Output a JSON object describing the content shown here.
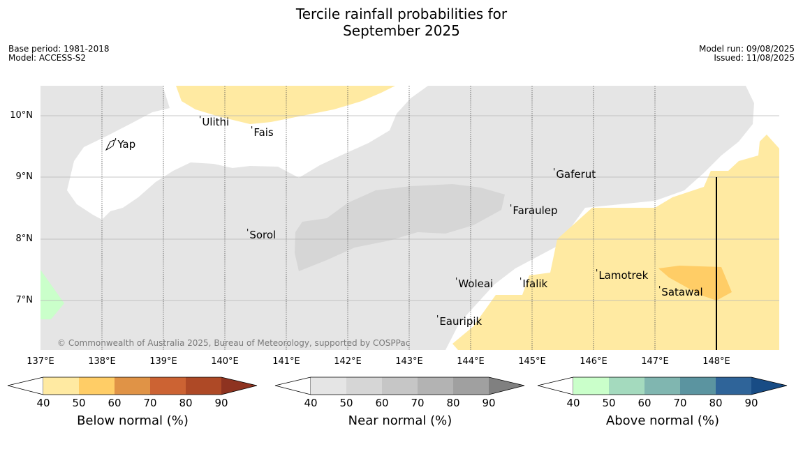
{
  "title": {
    "line1": "Tercile rainfall probabilities for",
    "line2": "September 2025"
  },
  "meta": {
    "base_period": "Base period: 1981-2018",
    "model": "Model: ACCESS-S2",
    "model_run": "Model run: 09/08/2025",
    "issued": "Issued: 11/08/2025"
  },
  "map": {
    "lat_labels": [
      "10°N",
      "9°N",
      "8°N",
      "7°N"
    ],
    "lon_labels": [
      "137°E",
      "138°E",
      "139°E",
      "140°E",
      "141°E",
      "142°E",
      "143°E",
      "144°E",
      "145°E",
      "146°E",
      "147°E",
      "148°E"
    ],
    "places": [
      "Ulithi",
      "Fais",
      "Yap",
      "Gaferut",
      "Faraulep",
      "Sorol",
      "Lamotrek",
      "Woleai",
      "Ifalik",
      "Satawal",
      "Eauripik"
    ],
    "copyright": "© Commonwealth of Australia 2025, Bureau of Meteorology, supported by COSPPac",
    "colors": {
      "ocean_no_skill": "#ffffff",
      "near_normal_40": "#e5e5e5",
      "near_normal_50": "#d6d6d6",
      "below_normal_40": "#ffeaa2",
      "below_normal_50": "#ffcd66",
      "above_normal_40": "#caffca"
    }
  },
  "colorbars": [
    {
      "label": "Below normal (%)",
      "ticks": [
        "40",
        "50",
        "60",
        "70",
        "80",
        "90"
      ],
      "colors": [
        "#ffeaa2",
        "#ffcd66",
        "#e09346",
        "#cc6333",
        "#ae4926",
        "#8e3320"
      ]
    },
    {
      "label": "Near normal (%)",
      "ticks": [
        "40",
        "50",
        "60",
        "70",
        "80",
        "90"
      ],
      "colors": [
        "#e5e5e5",
        "#d6d6d6",
        "#c6c6c6",
        "#b3b3b3",
        "#a0a0a0",
        "#808080"
      ]
    },
    {
      "label": "Above normal (%)",
      "ticks": [
        "40",
        "50",
        "60",
        "70",
        "80",
        "90"
      ],
      "colors": [
        "#caffca",
        "#a4dabe",
        "#80b6b0",
        "#5b94a0",
        "#2f6499",
        "#184c85"
      ]
    }
  ]
}
